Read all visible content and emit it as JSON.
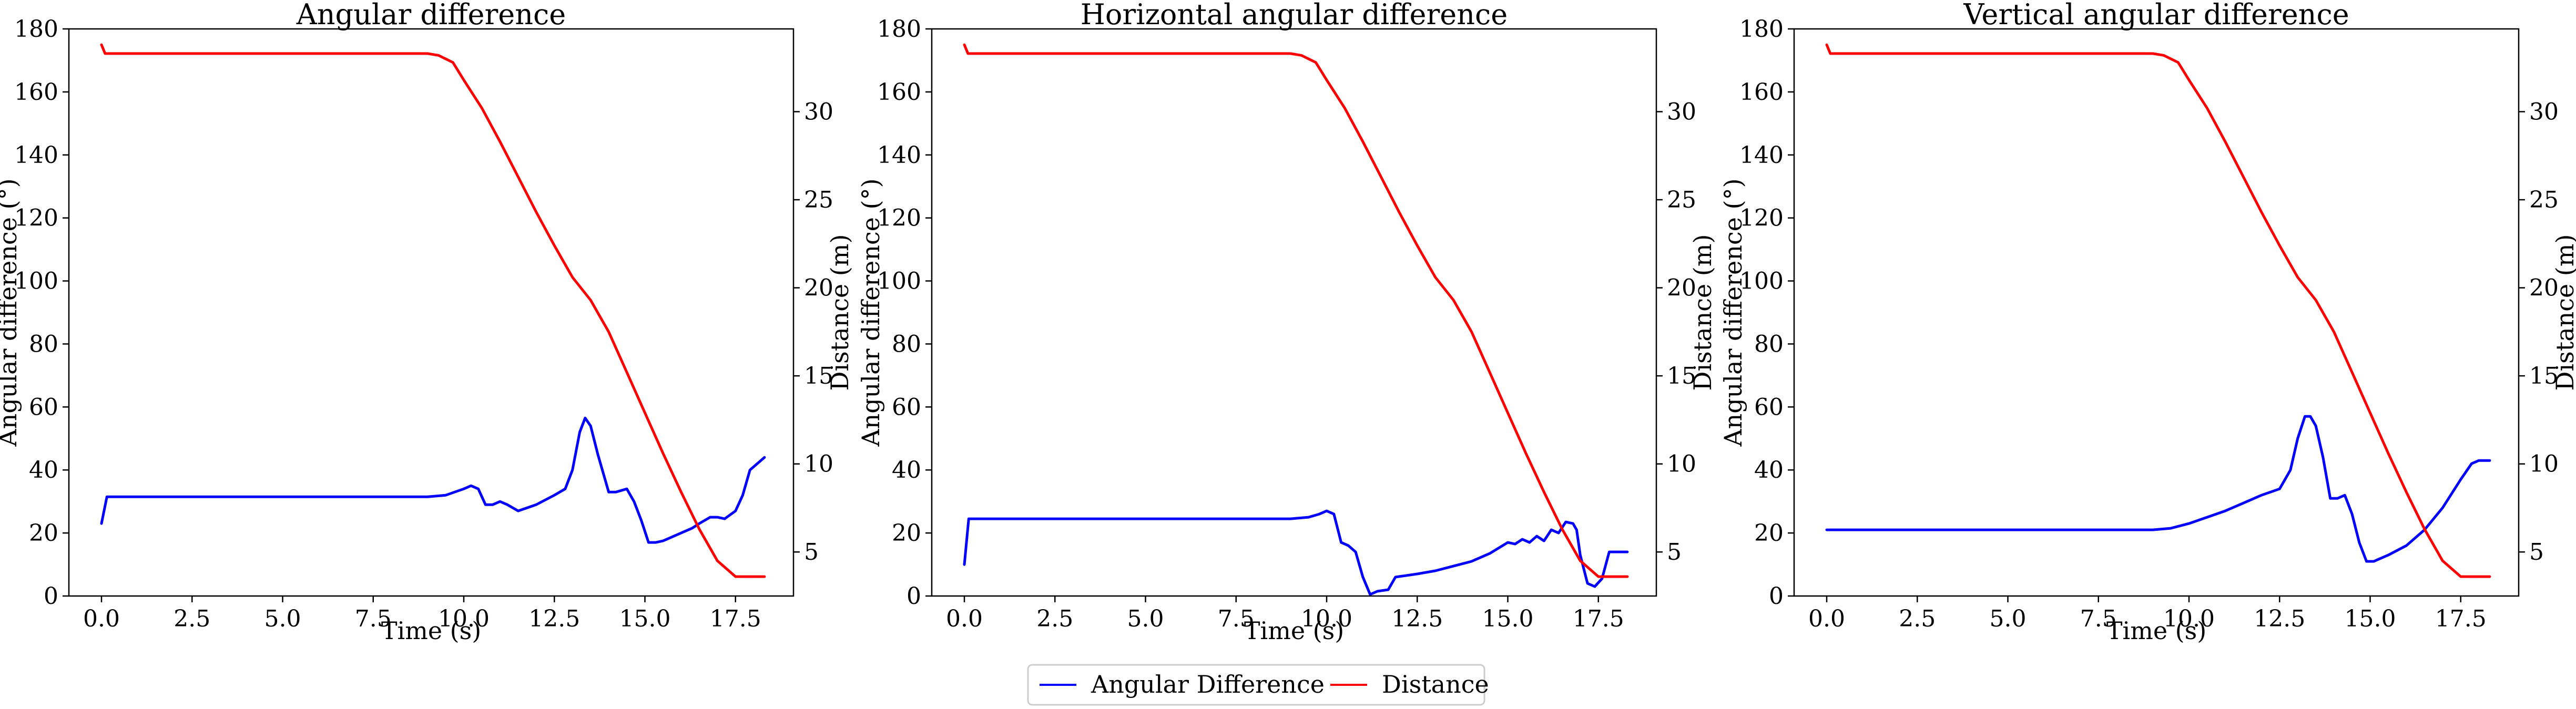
{
  "chart_data": [
    {
      "type": "line",
      "title": "Angular difference",
      "xlabel": "Time (s)",
      "ylabel": "Angular difference (°)",
      "ylabel_right": "Distance (m)",
      "xlim": [
        -0.9,
        19.1
      ],
      "ylim": [
        0,
        180
      ],
      "ylim_right": [
        2.5,
        34.7
      ],
      "x_ticks": [
        0.0,
        2.5,
        5.0,
        7.5,
        10.0,
        12.5,
        15.0,
        17.5
      ],
      "x_tick_labels": [
        "0.0",
        "2.5",
        "5.0",
        "7.5",
        "10.0",
        "12.5",
        "15.0",
        "17.5"
      ],
      "y_ticks": [
        0,
        20,
        40,
        60,
        80,
        100,
        120,
        140,
        160,
        180
      ],
      "y_tick_labels": [
        "0",
        "20",
        "40",
        "60",
        "80",
        "100",
        "120",
        "140",
        "160",
        "180"
      ],
      "y_ticks_right": [
        5,
        10,
        15,
        20,
        25,
        30
      ],
      "y_tick_labels_right": [
        "5",
        "10",
        "15",
        "20",
        "25",
        "30"
      ],
      "series": [
        {
          "name": "Angular Difference",
          "axis": "left",
          "color": "#0000ff",
          "x": [
            0,
            0.15,
            1,
            3,
            5,
            7,
            8.5,
            9,
            9.5,
            10,
            10.2,
            10.4,
            10.6,
            10.8,
            11,
            11.2,
            11.5,
            12,
            12.5,
            12.8,
            13.0,
            13.2,
            13.35,
            13.5,
            13.7,
            14.0,
            14.2,
            14.5,
            14.7,
            14.9,
            15.1,
            15.3,
            15.5,
            15.8,
            16.0,
            16.3,
            16.5,
            16.8,
            17.0,
            17.2,
            17.5,
            17.7,
            17.9,
            18.3
          ],
          "y": [
            23,
            31.5,
            31.5,
            31.5,
            31.5,
            31.5,
            31.5,
            31.5,
            32,
            34,
            35,
            34,
            29,
            29,
            30,
            29,
            27,
            29,
            32,
            34,
            40,
            52,
            56.5,
            54,
            45,
            33,
            33,
            34,
            30,
            24,
            17,
            17,
            17.5,
            19,
            20,
            21.5,
            23,
            25,
            25,
            24.5,
            27,
            32,
            40,
            44
          ]
        },
        {
          "name": "Distance",
          "axis": "right",
          "color": "#ff0000",
          "x": [
            0,
            0.1,
            1,
            3,
            5,
            7,
            8.5,
            9,
            9.3,
            9.7,
            10,
            10.5,
            11,
            11.5,
            12,
            12.5,
            13,
            13.5,
            14,
            14.5,
            15,
            15.5,
            16,
            16.5,
            17,
            17.5,
            17.8,
            18.3
          ],
          "y": [
            33.8,
            33.3,
            33.3,
            33.3,
            33.3,
            33.3,
            33.3,
            33.3,
            33.2,
            32.8,
            31.8,
            30.2,
            28.3,
            26.3,
            24.3,
            22.4,
            20.6,
            19.3,
            17.5,
            15.2,
            12.9,
            10.6,
            8.4,
            6.3,
            4.5,
            3.6,
            3.6,
            3.6
          ]
        }
      ]
    },
    {
      "type": "line",
      "title": "Horizontal angular difference",
      "xlabel": "Time (s)",
      "ylabel": "Angular difference (°)",
      "ylabel_right": "Distance (m)",
      "xlim": [
        -0.9,
        19.1
      ],
      "ylim": [
        0,
        180
      ],
      "ylim_right": [
        2.5,
        34.7
      ],
      "x_ticks": [
        0.0,
        2.5,
        5.0,
        7.5,
        10.0,
        12.5,
        15.0,
        17.5
      ],
      "x_tick_labels": [
        "0.0",
        "2.5",
        "5.0",
        "7.5",
        "10.0",
        "12.5",
        "15.0",
        "17.5"
      ],
      "y_ticks": [
        0,
        20,
        40,
        60,
        80,
        100,
        120,
        140,
        160,
        180
      ],
      "y_tick_labels": [
        "0",
        "20",
        "40",
        "60",
        "80",
        "100",
        "120",
        "140",
        "160",
        "180"
      ],
      "y_ticks_right": [
        5,
        10,
        15,
        20,
        25,
        30
      ],
      "y_tick_labels_right": [
        "5",
        "10",
        "15",
        "20",
        "25",
        "30"
      ],
      "series": [
        {
          "name": "Angular Difference",
          "axis": "left",
          "color": "#0000ff",
          "x": [
            0,
            0.12,
            1,
            3,
            5,
            7,
            8.5,
            9,
            9.5,
            9.8,
            10.0,
            10.2,
            10.4,
            10.6,
            10.8,
            11.0,
            11.2,
            11.4,
            11.7,
            11.9,
            12.5,
            13.0,
            13.5,
            14.0,
            14.5,
            15.0,
            15.2,
            15.4,
            15.6,
            15.8,
            16.0,
            16.2,
            16.4,
            16.6,
            16.8,
            16.9,
            17.0,
            17.2,
            17.4,
            17.6,
            17.8,
            18.3
          ],
          "y": [
            10,
            24.5,
            24.5,
            24.5,
            24.5,
            24.5,
            24.5,
            24.5,
            25,
            26,
            27,
            26,
            17,
            16,
            14,
            6,
            0.5,
            1.5,
            2,
            6,
            7,
            8,
            9.5,
            11,
            13.5,
            17,
            16.5,
            18,
            17,
            19,
            17.5,
            21,
            20,
            23.5,
            23,
            21,
            13,
            4,
            3,
            5.5,
            14,
            14
          ]
        },
        {
          "name": "Distance",
          "axis": "right",
          "color": "#ff0000",
          "x": [
            0,
            0.1,
            1,
            3,
            5,
            7,
            8.5,
            9,
            9.3,
            9.7,
            10,
            10.5,
            11,
            11.5,
            12,
            12.5,
            13,
            13.5,
            14,
            14.5,
            15,
            15.5,
            16,
            16.5,
            17,
            17.5,
            17.8,
            18.3
          ],
          "y": [
            33.8,
            33.3,
            33.3,
            33.3,
            33.3,
            33.3,
            33.3,
            33.3,
            33.2,
            32.8,
            31.8,
            30.2,
            28.3,
            26.3,
            24.3,
            22.4,
            20.6,
            19.3,
            17.5,
            15.2,
            12.9,
            10.6,
            8.4,
            6.3,
            4.5,
            3.6,
            3.6,
            3.6
          ]
        }
      ]
    },
    {
      "type": "line",
      "title": "Vertical angular difference",
      "xlabel": "Time (s)",
      "ylabel": "Angular difference (°)",
      "ylabel_right": "Distance (m)",
      "xlim": [
        -0.9,
        19.1
      ],
      "ylim": [
        0,
        180
      ],
      "ylim_right": [
        2.5,
        34.7
      ],
      "x_ticks": [
        0.0,
        2.5,
        5.0,
        7.5,
        10.0,
        12.5,
        15.0,
        17.5
      ],
      "x_tick_labels": [
        "0.0",
        "2.5",
        "5.0",
        "7.5",
        "10.0",
        "12.5",
        "15.0",
        "17.5"
      ],
      "y_ticks": [
        0,
        20,
        40,
        60,
        80,
        100,
        120,
        140,
        160,
        180
      ],
      "y_tick_labels": [
        "0",
        "20",
        "40",
        "60",
        "80",
        "100",
        "120",
        "140",
        "160",
        "180"
      ],
      "y_ticks_right": [
        5,
        10,
        15,
        20,
        25,
        30
      ],
      "y_tick_labels_right": [
        "5",
        "10",
        "15",
        "20",
        "25",
        "30"
      ],
      "series": [
        {
          "name": "Angular Difference",
          "axis": "left",
          "color": "#0000ff",
          "x": [
            0,
            1,
            3,
            5,
            7,
            9,
            9.5,
            10,
            10.5,
            11,
            11.5,
            12,
            12.5,
            12.8,
            13.0,
            13.2,
            13.35,
            13.5,
            13.7,
            13.9,
            14.1,
            14.3,
            14.5,
            14.7,
            14.9,
            15.1,
            15.5,
            16.0,
            16.5,
            17.0,
            17.5,
            17.8,
            18.0,
            18.3
          ],
          "y": [
            21,
            21,
            21,
            21,
            21,
            21,
            21.5,
            23,
            25,
            27,
            29.5,
            32,
            34,
            40,
            50,
            57,
            57,
            54,
            44,
            31,
            31,
            32,
            26,
            17,
            11,
            11,
            13,
            16,
            21,
            28,
            37,
            42,
            43,
            43
          ]
        },
        {
          "name": "Distance",
          "axis": "right",
          "color": "#ff0000",
          "x": [
            0,
            0.1,
            1,
            3,
            5,
            7,
            8.5,
            9,
            9.3,
            9.7,
            10,
            10.5,
            11,
            11.5,
            12,
            12.5,
            13,
            13.5,
            14,
            14.5,
            15,
            15.5,
            16,
            16.5,
            17,
            17.5,
            17.8,
            18.3
          ],
          "y": [
            33.8,
            33.3,
            33.3,
            33.3,
            33.3,
            33.3,
            33.3,
            33.3,
            33.2,
            32.8,
            31.8,
            30.2,
            28.3,
            26.3,
            24.3,
            22.4,
            20.6,
            19.3,
            17.5,
            15.2,
            12.9,
            10.6,
            8.4,
            6.3,
            4.5,
            3.6,
            3.6,
            3.6
          ]
        }
      ]
    }
  ],
  "legend": {
    "placement": "bottom-center",
    "entries": [
      {
        "label": "Angular Difference",
        "color": "#0000ff"
      },
      {
        "label": "Distance",
        "color": "#ff0000"
      }
    ]
  }
}
